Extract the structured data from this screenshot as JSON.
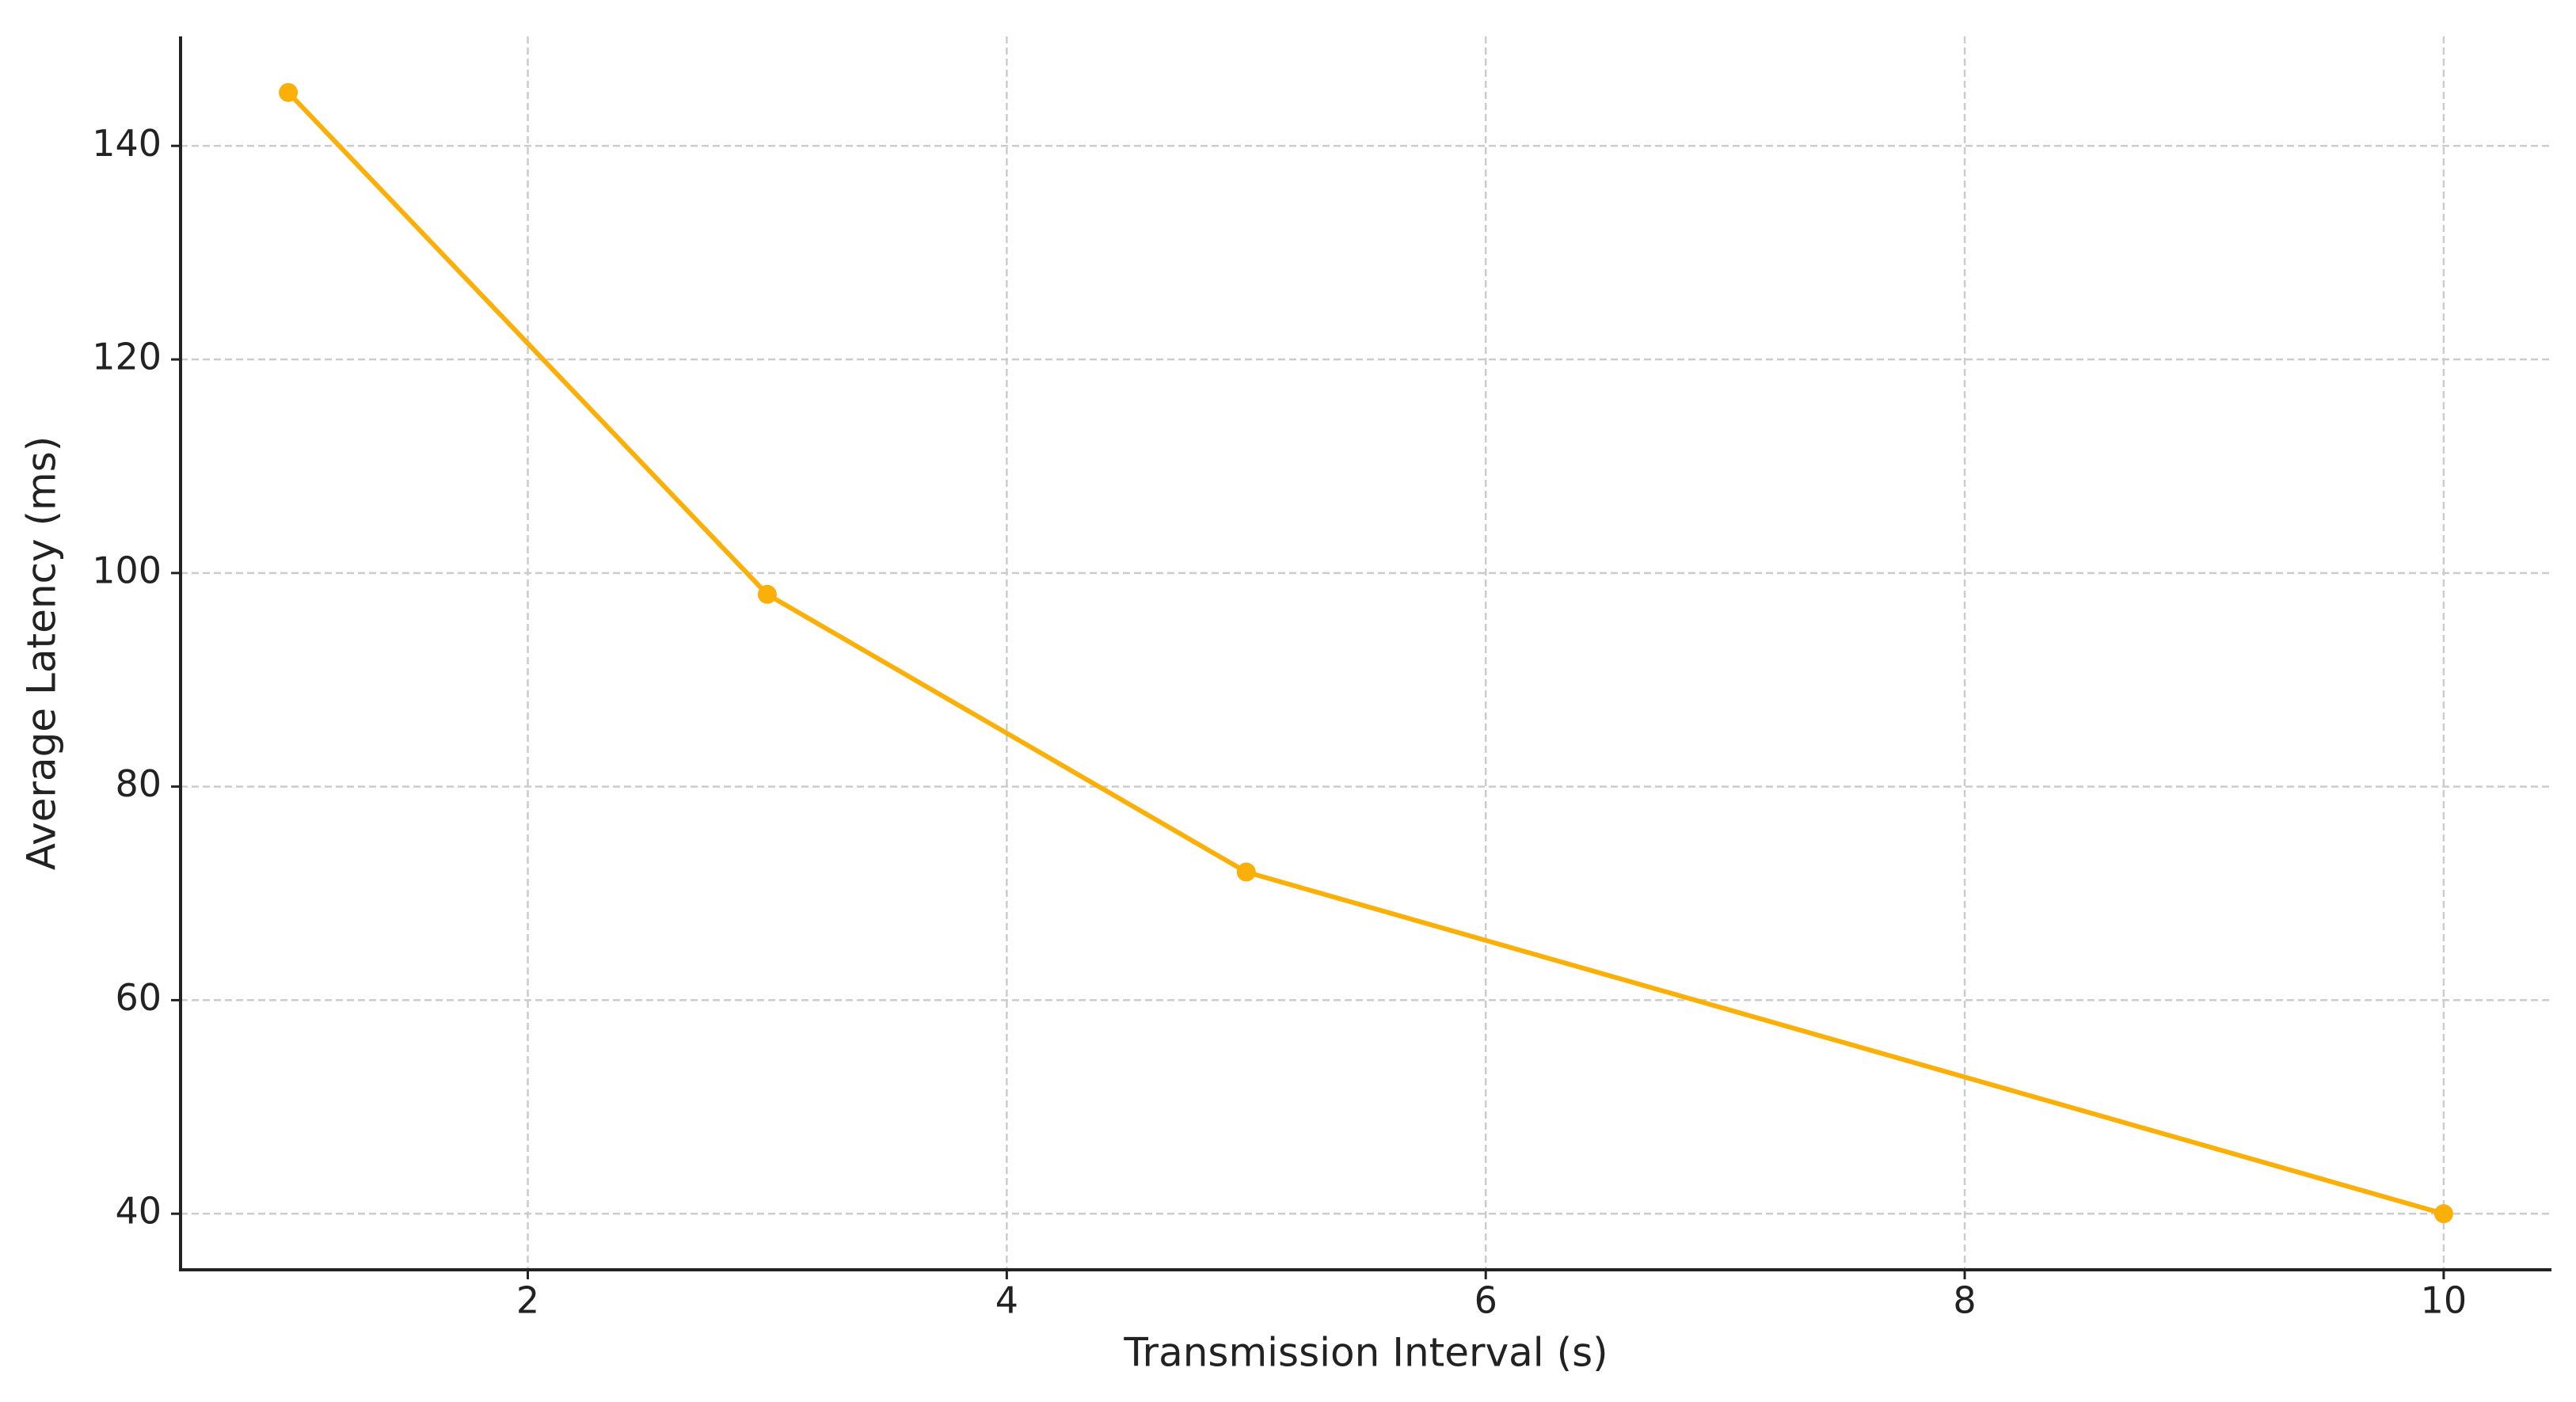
{
  "chart_data": {
    "type": "line",
    "x_label": "Transmission Interval (s)",
    "y_label": "Average Latency (ms)",
    "x": [
      1,
      3,
      5,
      10
    ],
    "series": [
      {
        "color": "#fbb009",
        "values": [
          145,
          98,
          72,
          40
        ]
      }
    ],
    "xlim": [
      0.55,
      10.45
    ],
    "xticks": [
      2,
      4,
      6,
      8,
      10
    ],
    "ylim": [
      34.75,
      150.25
    ],
    "yticks": [
      40,
      60,
      80,
      100,
      120,
      140
    ],
    "grid": true
  }
}
